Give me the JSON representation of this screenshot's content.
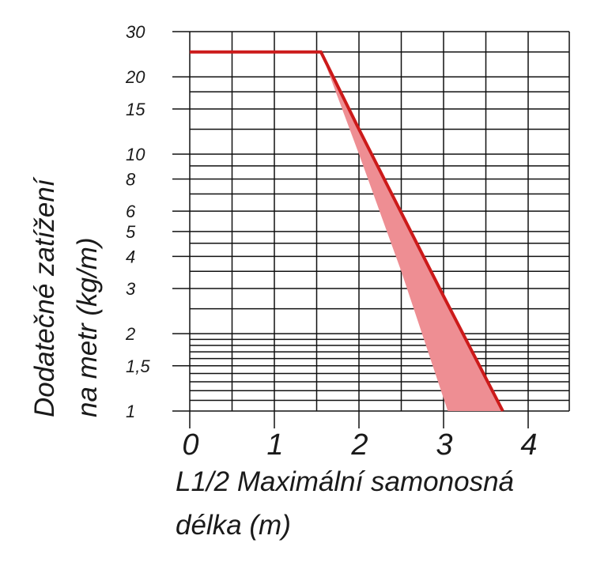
{
  "chart_data": {
    "type": "line",
    "title": "",
    "xlabel_lines": [
      "L1/2 Maximální samonosná",
      "délka (m)"
    ],
    "ylabel_lines": [
      "Dodatečné zatížení",
      "na metr (kg/m)"
    ],
    "x_ticks": [
      "0",
      "1",
      "2",
      "3",
      "4"
    ],
    "y_ticks": [
      {
        "value": 1,
        "label": "1"
      },
      {
        "value": 1.5,
        "label": "1,5"
      },
      {
        "value": 2,
        "label": "2"
      },
      {
        "value": 3,
        "label": "3"
      },
      {
        "value": 4,
        "label": "4"
      },
      {
        "value": 5,
        "label": "5"
      },
      {
        "value": 6,
        "label": "6"
      },
      {
        "value": 8,
        "label": "8"
      },
      {
        "value": 10,
        "label": "10"
      },
      {
        "value": 15,
        "label": "15"
      },
      {
        "value": 20,
        "label": "20"
      },
      {
        "value": 30,
        "label": "30"
      }
    ],
    "xlim": [
      0,
      4.5
    ],
    "ylim": [
      1,
      30
    ],
    "y_scale": "log",
    "grid": true,
    "series": [
      {
        "color": "#cc1a1a",
        "points": [
          [
            0,
            25
          ],
          [
            1.55,
            25
          ],
          [
            2.0,
            12.5
          ],
          [
            3.0,
            2.8
          ],
          [
            3.7,
            1.0
          ]
        ]
      }
    ],
    "band": {
      "color": "#ee8e93",
      "upper": [
        [
          1.55,
          25
        ],
        [
          2.0,
          12.5
        ],
        [
          3.0,
          2.8
        ],
        [
          3.7,
          1.0
        ]
      ],
      "lower": [
        [
          3.05,
          1.0
        ],
        [
          2.5,
          3.5
        ],
        [
          2.0,
          10
        ],
        [
          1.55,
          25
        ]
      ]
    }
  }
}
